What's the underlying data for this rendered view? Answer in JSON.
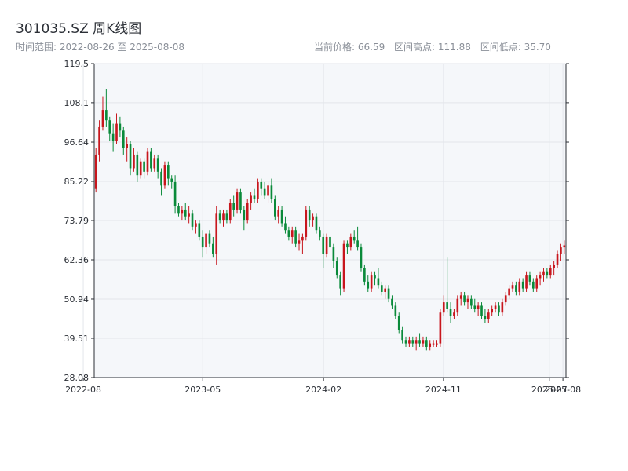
{
  "header": {
    "title": "301035.SZ 周K线图",
    "subtitle": "时间范围: 2022-08-26 至 2025-08-08",
    "stats": {
      "current": "当前价格: 66.59",
      "high": "区间高点: 111.88",
      "low": "区间低点: 35.70"
    }
  },
  "colors": {
    "up": "#c8161d",
    "down": "#0a8a3a",
    "plot_bg": "#f5f7fa",
    "grid": "#e3e6eb",
    "axis": "#2b2f36"
  },
  "chart_data": {
    "type": "candlestick",
    "title": "301035.SZ 周K线图",
    "x_range": [
      "2022-08-26",
      "2025-08-08"
    ],
    "x_ticks": [
      {
        "date": "2022-08-01",
        "label": "2022-08"
      },
      {
        "date": "2023-05-01",
        "label": "2023-05"
      },
      {
        "date": "2024-02-01",
        "label": "2024-02"
      },
      {
        "date": "2024-11-01",
        "label": "2024-11"
      },
      {
        "date": "2025-07-01",
        "label": "2025-07"
      },
      {
        "date": "2025-08-01",
        "label": "2025-08"
      }
    ],
    "y_ticks": [
      28.08,
      39.51,
      50.94,
      62.36,
      73.79,
      85.22,
      96.64,
      108.1,
      119.5
    ],
    "ylim": [
      28.08,
      119.5
    ],
    "grid": true,
    "candles_weekly_ohlc": [
      [
        83,
        95,
        82,
        93
      ],
      [
        93,
        103,
        91,
        101
      ],
      [
        101,
        110,
        100,
        106
      ],
      [
        106,
        112,
        101,
        103
      ],
      [
        103,
        104,
        97,
        99
      ],
      [
        99,
        102,
        94,
        97
      ],
      [
        97,
        105,
        96,
        102
      ],
      [
        102,
        104,
        98,
        100
      ],
      [
        100,
        101,
        93,
        95
      ],
      [
        95,
        98,
        91,
        96
      ],
      [
        96,
        97,
        87,
        89
      ],
      [
        89,
        95,
        88,
        93
      ],
      [
        93,
        94,
        85,
        87
      ],
      [
        87,
        92,
        86,
        91
      ],
      [
        91,
        92,
        86,
        88
      ],
      [
        88,
        95,
        87,
        94
      ],
      [
        94,
        95,
        88,
        89
      ],
      [
        89,
        93,
        88,
        92
      ],
      [
        92,
        93,
        86,
        88
      ],
      [
        88,
        89,
        81,
        84
      ],
      [
        84,
        91,
        83,
        90
      ],
      [
        90,
        91,
        84,
        86
      ],
      [
        86,
        87,
        83,
        85
      ],
      [
        85,
        87,
        76,
        78
      ],
      [
        78,
        79,
        75,
        76
      ],
      [
        76,
        78,
        74,
        77
      ],
      [
        77,
        79,
        74,
        75
      ],
      [
        75,
        78,
        73,
        76
      ],
      [
        76,
        77,
        71,
        72
      ],
      [
        72,
        74,
        70,
        73
      ],
      [
        73,
        74,
        68,
        69
      ],
      [
        69,
        71,
        63,
        66
      ],
      [
        66,
        70,
        64,
        70
      ],
      [
        70,
        71,
        66,
        67
      ],
      [
        67,
        69,
        63,
        64
      ],
      [
        64,
        78,
        61,
        76
      ],
      [
        76,
        77,
        73,
        74
      ],
      [
        74,
        77,
        72,
        76
      ],
      [
        76,
        77,
        73,
        74
      ],
      [
        74,
        80,
        73,
        79
      ],
      [
        79,
        81,
        75,
        77
      ],
      [
        77,
        83,
        76,
        82
      ],
      [
        82,
        83,
        76,
        77
      ],
      [
        77,
        78,
        71,
        74
      ],
      [
        74,
        80,
        73,
        79
      ],
      [
        79,
        82,
        77,
        81
      ],
      [
        81,
        83,
        79,
        80
      ],
      [
        80,
        86,
        79,
        85
      ],
      [
        85,
        86,
        81,
        83
      ],
      [
        83,
        85,
        80,
        81
      ],
      [
        81,
        85,
        79,
        84
      ],
      [
        84,
        86,
        79,
        80
      ],
      [
        80,
        81,
        74,
        75
      ],
      [
        75,
        78,
        73,
        77
      ],
      [
        77,
        78,
        72,
        73
      ],
      [
        73,
        75,
        70,
        71
      ],
      [
        71,
        72,
        68,
        69
      ],
      [
        69,
        72,
        67,
        71
      ],
      [
        71,
        72,
        66,
        67
      ],
      [
        67,
        70,
        65,
        68
      ],
      [
        68,
        70,
        64,
        69
      ],
      [
        69,
        78,
        68,
        77
      ],
      [
        77,
        78,
        72,
        74
      ],
      [
        74,
        76,
        72,
        75
      ],
      [
        75,
        76,
        70,
        71
      ],
      [
        71,
        72,
        68,
        69
      ],
      [
        69,
        70,
        60,
        64
      ],
      [
        64,
        70,
        63,
        69
      ],
      [
        69,
        70,
        65,
        66
      ],
      [
        66,
        67,
        60,
        62
      ],
      [
        62,
        63,
        57,
        58
      ],
      [
        58,
        59,
        52,
        54
      ],
      [
        54,
        68,
        53,
        67
      ],
      [
        67,
        68,
        64,
        66
      ],
      [
        66,
        70,
        65,
        69
      ],
      [
        69,
        71,
        67,
        68
      ],
      [
        68,
        72,
        65,
        66
      ],
      [
        66,
        67,
        59,
        60
      ],
      [
        60,
        61,
        55,
        56
      ],
      [
        56,
        58,
        53,
        54
      ],
      [
        54,
        59,
        53,
        58
      ],
      [
        58,
        59,
        55,
        57
      ],
      [
        57,
        60,
        54,
        55
      ],
      [
        55,
        56,
        52,
        53
      ],
      [
        53,
        55,
        51,
        54
      ],
      [
        54,
        55,
        50,
        51
      ],
      [
        51,
        52,
        48,
        49
      ],
      [
        49,
        50,
        45,
        46
      ],
      [
        46,
        47,
        41,
        42
      ],
      [
        42,
        43,
        38,
        39
      ],
      [
        39,
        40,
        37,
        38
      ],
      [
        38,
        40,
        37,
        39
      ],
      [
        39,
        40,
        37,
        38
      ],
      [
        38,
        40,
        36,
        39
      ],
      [
        39,
        41,
        37,
        38
      ],
      [
        38,
        40,
        37,
        39
      ],
      [
        39,
        40,
        36,
        37
      ],
      [
        37,
        39,
        36,
        38
      ],
      [
        38,
        39,
        37,
        38
      ],
      [
        38,
        39,
        37,
        38
      ],
      [
        38,
        48,
        37,
        47
      ],
      [
        47,
        52,
        46,
        50
      ],
      [
        50,
        63,
        47,
        48
      ],
      [
        48,
        50,
        44,
        46
      ],
      [
        46,
        48,
        45,
        47
      ],
      [
        47,
        52,
        46,
        51
      ],
      [
        51,
        53,
        49,
        52
      ],
      [
        52,
        53,
        49,
        50
      ],
      [
        50,
        52,
        48,
        51
      ],
      [
        51,
        52,
        48,
        49
      ],
      [
        49,
        51,
        47,
        48
      ],
      [
        48,
        50,
        46,
        49
      ],
      [
        49,
        50,
        45,
        46
      ],
      [
        46,
        48,
        44,
        45
      ],
      [
        45,
        48,
        44,
        47
      ],
      [
        47,
        49,
        46,
        48
      ],
      [
        48,
        50,
        47,
        49
      ],
      [
        49,
        50,
        46,
        47
      ],
      [
        47,
        51,
        46,
        50
      ],
      [
        50,
        53,
        49,
        52
      ],
      [
        52,
        55,
        51,
        54
      ],
      [
        54,
        56,
        53,
        55
      ],
      [
        55,
        56,
        52,
        53
      ],
      [
        53,
        57,
        52,
        56
      ],
      [
        56,
        57,
        53,
        54
      ],
      [
        54,
        59,
        53,
        58
      ],
      [
        58,
        59,
        55,
        56
      ],
      [
        56,
        57,
        53,
        54
      ],
      [
        54,
        58,
        53,
        57
      ],
      [
        57,
        59,
        55,
        58
      ],
      [
        58,
        60,
        56,
        59
      ],
      [
        59,
        60,
        57,
        58
      ],
      [
        58,
        61,
        57,
        60
      ],
      [
        60,
        62,
        58,
        61
      ],
      [
        61,
        65,
        60,
        64
      ],
      [
        64,
        67,
        62,
        66
      ],
      [
        66,
        68,
        64,
        66.59
      ]
    ]
  }
}
